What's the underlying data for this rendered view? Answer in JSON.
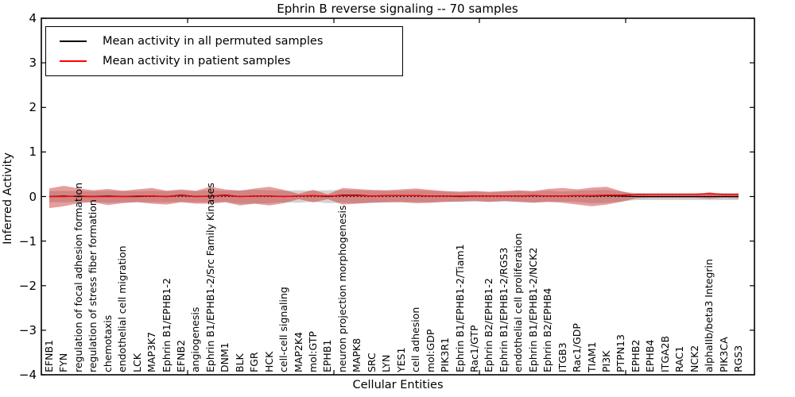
{
  "chart_data": {
    "type": "line",
    "title": "Ephrin B reverse signaling -- 70 samples",
    "xlabel": "Cellular Entities",
    "ylabel": "Inferred Activity",
    "ylim": [
      -4,
      4
    ],
    "ytick_labels": [
      "4",
      "3",
      "2",
      "1",
      "0",
      "−1",
      "−2",
      "−3",
      "−4"
    ],
    "grid": false,
    "legend_position": "upper left",
    "legend": [
      {
        "label": "Mean activity in all permuted samples",
        "color": "#000000"
      },
      {
        "label": "Mean activity in patient samples",
        "color": "#ff0000"
      }
    ],
    "colors": {
      "permuted_line": "#000000",
      "patient_line": "#ff0000",
      "permuted_band": "rgba(128,128,128,0.35)",
      "patient_band": "rgba(204,37,37,0.45)",
      "zero_line": "#000000"
    },
    "categories": [
      "EFNB1",
      "FYN",
      "regulation of focal adhesion formation",
      "regulation of stress fiber formation",
      "chemotaxis",
      "endothelial cell migration",
      "LCK",
      "MAP3K7",
      "Ephrin B1/EPHB1-2",
      "EFNB2",
      "angiogenesis",
      "Ephrin B1/EPHB1-2/Src Family Kinases",
      "DNM1",
      "BLK",
      "FGR",
      "HCK",
      "cell-cell signaling",
      "MAP2K4",
      "mol:GTP",
      "EPHB1",
      "neuron projection morphogenesis",
      "MAPK8",
      "SRC",
      "LYN",
      "YES1",
      "cell adhesion",
      "mol:GDP",
      "PIK3R1",
      "Ephrin B1/EPHB1-2/Tiam1",
      "Rac1/GTP",
      "Ephrin B2/EPHB1-2",
      "Ephrin B1/EPHB1-2/RGS3",
      "endothelial cell proliferation",
      "Ephrin B1/EPHB1-2/NCK2",
      "Ephrin B2/EPHB4",
      "ITGB3",
      "Rac1/GDP",
      "TIAM1",
      "PI3K",
      "PTPN13",
      "EPHB2",
      "EPHB4",
      "ITGA2B",
      "RAC1",
      "NCK2",
      "alphaIIb/beta3 Integrin",
      "PIK3CA",
      "RGS3"
    ],
    "series": [
      {
        "name": "Mean activity in all permuted samples",
        "mean": [
          0.0,
          0.01,
          0.0,
          0.0,
          0.01,
          0.0,
          0.0,
          0.01,
          0.0,
          0.03,
          0.0,
          0.01,
          0.03,
          0.0,
          0.01,
          0.01,
          0.0,
          0.01,
          0.02,
          0.0,
          0.03,
          0.03,
          0.01,
          0.02,
          0.02,
          0.02,
          0.01,
          0.01,
          0.0,
          0.01,
          0.01,
          0.01,
          0.01,
          0.02,
          0.01,
          0.01,
          0.02,
          0.01,
          0.02,
          0.01,
          0.0,
          0.0,
          0.0,
          0.0,
          0.0,
          0.0,
          0.0,
          0.0
        ],
        "band_hi": [
          0.12,
          0.13,
          0.12,
          0.12,
          0.13,
          0.12,
          0.12,
          0.13,
          0.12,
          0.13,
          0.12,
          0.14,
          0.13,
          0.14,
          0.15,
          0.14,
          0.13,
          0.14,
          0.13,
          0.14,
          0.15,
          0.14,
          0.13,
          0.13,
          0.13,
          0.14,
          0.13,
          0.12,
          0.12,
          0.12,
          0.11,
          0.12,
          0.12,
          0.12,
          0.13,
          0.11,
          0.13,
          0.14,
          0.15,
          0.11,
          0.08,
          0.08,
          0.08,
          0.08,
          0.08,
          0.08,
          0.08,
          0.08
        ],
        "band_lo": [
          -0.13,
          -0.13,
          -0.12,
          -0.12,
          -0.14,
          -0.13,
          -0.12,
          -0.13,
          -0.13,
          -0.12,
          -0.13,
          -0.13,
          -0.12,
          -0.16,
          -0.16,
          -0.15,
          -0.13,
          -0.14,
          -0.12,
          -0.15,
          -0.14,
          -0.15,
          -0.14,
          -0.13,
          -0.12,
          -0.13,
          -0.13,
          -0.12,
          -0.12,
          -0.11,
          -0.12,
          -0.11,
          -0.12,
          -0.13,
          -0.12,
          -0.11,
          -0.12,
          -0.15,
          -0.14,
          -0.11,
          -0.08,
          -0.08,
          -0.08,
          -0.08,
          -0.08,
          -0.08,
          -0.08,
          -0.08
        ]
      },
      {
        "name": "Mean activity in patient samples",
        "mean": [
          0.0,
          0.0,
          0.01,
          0.0,
          0.0,
          0.0,
          0.01,
          0.01,
          0.0,
          0.02,
          0.0,
          0.01,
          0.02,
          0.0,
          0.01,
          0.01,
          0.0,
          0.01,
          0.02,
          0.01,
          0.02,
          0.02,
          0.01,
          0.02,
          0.02,
          0.02,
          0.01,
          0.01,
          0.01,
          0.01,
          0.01,
          0.01,
          0.01,
          0.02,
          0.01,
          0.01,
          0.02,
          0.02,
          0.03,
          0.03,
          0.05,
          0.05,
          0.05,
          0.05,
          0.05,
          0.06,
          0.05,
          0.05
        ],
        "band_hi": [
          0.18,
          0.24,
          0.18,
          0.14,
          0.17,
          0.13,
          0.16,
          0.19,
          0.13,
          0.16,
          0.13,
          0.22,
          0.16,
          0.13,
          0.18,
          0.22,
          0.15,
          0.06,
          0.15,
          0.05,
          0.19,
          0.17,
          0.15,
          0.14,
          0.16,
          0.18,
          0.15,
          0.12,
          0.1,
          0.12,
          0.1,
          0.12,
          0.14,
          0.12,
          0.17,
          0.19,
          0.16,
          0.2,
          0.22,
          0.12,
          0.04,
          0.03,
          0.03,
          0.03,
          0.03,
          0.1,
          0.04,
          0.05
        ],
        "band_lo": [
          -0.26,
          -0.22,
          -0.15,
          -0.13,
          -0.19,
          -0.15,
          -0.13,
          -0.16,
          -0.18,
          -0.13,
          -0.16,
          -0.16,
          -0.13,
          -0.2,
          -0.16,
          -0.2,
          -0.15,
          -0.06,
          -0.13,
          -0.06,
          -0.18,
          -0.16,
          -0.14,
          -0.13,
          -0.13,
          -0.15,
          -0.14,
          -0.12,
          -0.11,
          -0.1,
          -0.12,
          -0.1,
          -0.12,
          -0.14,
          -0.12,
          -0.14,
          -0.18,
          -0.22,
          -0.18,
          -0.12,
          -0.04,
          -0.03,
          -0.03,
          -0.03,
          -0.03,
          -0.05,
          -0.03,
          -0.04
        ]
      }
    ],
    "zero_reference_line": 0
  }
}
